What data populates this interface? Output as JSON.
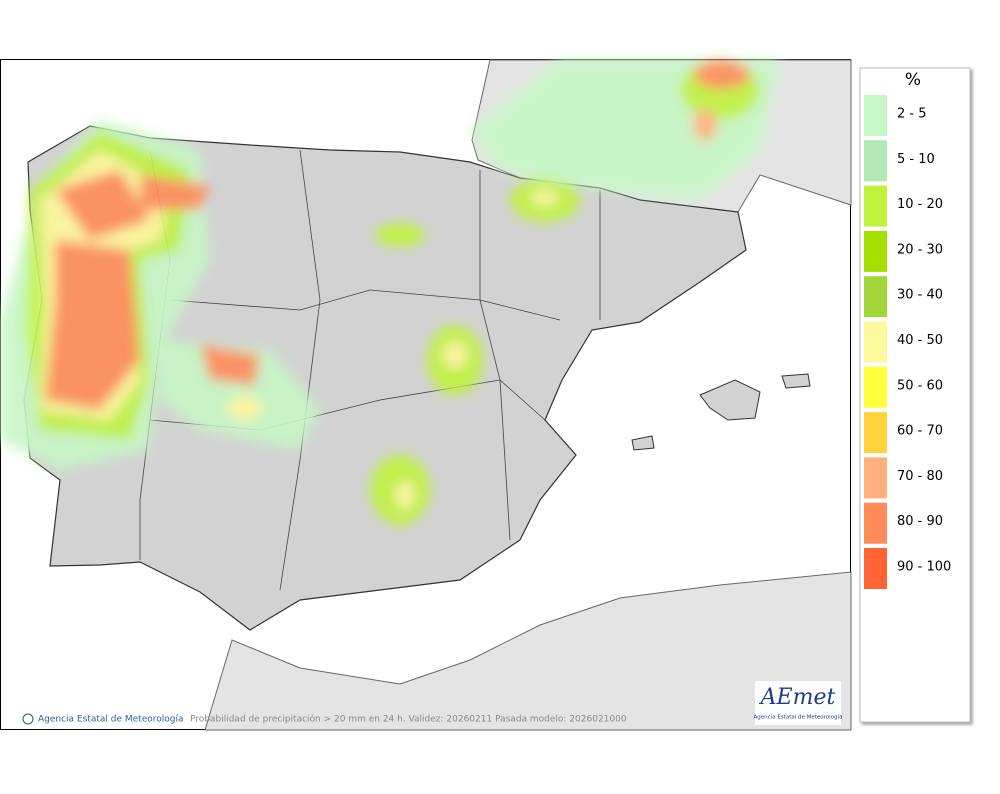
{
  "legend": {
    "title": "%",
    "items": [
      {
        "label": "2 - 5",
        "color": "#c6f7c6"
      },
      {
        "label": "5 - 10",
        "color": "#b2e9b2"
      },
      {
        "label": "10 - 20",
        "color": "#bff23a"
      },
      {
        "label": "20 - 30",
        "color": "#a3e000"
      },
      {
        "label": "30 - 40",
        "color": "#a2d63a"
      },
      {
        "label": "40 - 50",
        "color": "#fff89c"
      },
      {
        "label": "50 - 60",
        "color": "#ffff3c"
      },
      {
        "label": "60 - 70",
        "color": "#ffd23c"
      },
      {
        "label": "70 - 80",
        "color": "#ffb07c"
      },
      {
        "label": "80 - 90",
        "color": "#ff8c58"
      },
      {
        "label": "90 - 100",
        "color": "#ff6432"
      }
    ]
  },
  "footer": {
    "credit": "Agencia Estatal de Meteorología",
    "caption": "Probabilidad de precipitación > 20 mm en 24 h. Validez: 20260211 Pasada modelo: 2026021000"
  },
  "logo": {
    "name": "AEmet",
    "subtitle": "Agencia Estatal de Meteorología"
  }
}
